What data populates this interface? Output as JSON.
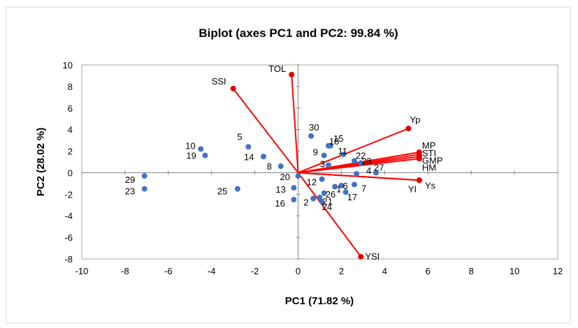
{
  "chart_data": {
    "type": "scatter",
    "title": "Biplot (axes PC1 and PC2: 99.84 %)",
    "xlabel": "PC1 (71.82 %)",
    "ylabel": "PC2 (28.02 %)",
    "xlim": [
      -10,
      12
    ],
    "ylim": [
      -8,
      10
    ],
    "xticks": [
      -10,
      -8,
      -6,
      -4,
      -2,
      0,
      2,
      4,
      6,
      8,
      10,
      12
    ],
    "yticks": [
      -8,
      -6,
      -4,
      -2,
      0,
      2,
      4,
      6,
      8,
      10
    ],
    "grid": false,
    "colors": {
      "points": "#4472C4",
      "vectors": "#FF0000",
      "vector_heads": "#E00000"
    },
    "observations": [
      {
        "label": "1",
        "x": 1.7,
        "y": -1.3
      },
      {
        "label": "2",
        "x": 0.7,
        "y": -2.4
      },
      {
        "label": "3",
        "x": 1.4,
        "y": 0.7
      },
      {
        "label": "4",
        "x": 2.7,
        "y": -0.1
      },
      {
        "label": "5",
        "x": -2.3,
        "y": 2.4
      },
      {
        "label": "6",
        "x": 2.0,
        "y": -1.2
      },
      {
        "label": "7",
        "x": 2.6,
        "y": -1.1
      },
      {
        "label": "8",
        "x": -0.8,
        "y": 0.6
      },
      {
        "label": "9",
        "x": 1.2,
        "y": 1.6
      },
      {
        "label": "10",
        "x": -4.5,
        "y": 2.2
      },
      {
        "label": "11",
        "x": 2.1,
        "y": 1.7
      },
      {
        "label": "12",
        "x": 1.1,
        "y": -0.6
      },
      {
        "label": "13",
        "x": -0.2,
        "y": -1.4
      },
      {
        "label": "14",
        "x": -1.6,
        "y": 1.5
      },
      {
        "label": "15",
        "x": 1.5,
        "y": 2.5
      },
      {
        "label": "16",
        "x": -0.2,
        "y": -2.5
      },
      {
        "label": "17",
        "x": 2.2,
        "y": -1.8
      },
      {
        "label": "18",
        "x": 1.4,
        "y": 2.5
      },
      {
        "label": "19",
        "x": -4.3,
        "y": 1.6
      },
      {
        "label": "20",
        "x": 0.0,
        "y": -0.3
      },
      {
        "label": "21",
        "x": 1.0,
        "y": -2.3
      },
      {
        "label": "22",
        "x": 2.6,
        "y": 1.1
      },
      {
        "label": "23",
        "x": -7.1,
        "y": -1.5
      },
      {
        "label": "24",
        "x": 1.1,
        "y": -2.7
      },
      {
        "label": "25",
        "x": -2.8,
        "y": -1.5
      },
      {
        "label": "26",
        "x": 1.2,
        "y": -1.9
      },
      {
        "label": "27",
        "x": 3.6,
        "y": 0.0
      },
      {
        "label": "28",
        "x": 2.9,
        "y": 0.9
      },
      {
        "label": "29",
        "x": -7.1,
        "y": -0.3
      },
      {
        "label": "30",
        "x": 0.6,
        "y": 3.4
      }
    ],
    "variables": [
      {
        "label": "TOL",
        "x": -0.3,
        "y": 9.1
      },
      {
        "label": "SSI",
        "x": -3.0,
        "y": 7.8
      },
      {
        "label": "Yp",
        "x": 5.1,
        "y": 4.1
      },
      {
        "label": "MP",
        "x": 5.6,
        "y": 1.9
      },
      {
        "label": "STI",
        "x": 5.6,
        "y": 1.7
      },
      {
        "label": "GMP",
        "x": 5.6,
        "y": 1.5
      },
      {
        "label": "HM",
        "x": 5.6,
        "y": 1.3
      },
      {
        "label": "Ys",
        "x": 5.6,
        "y": -0.7
      },
      {
        "label": "YI",
        "x": 5.6,
        "y": -0.7
      },
      {
        "label": "YSI",
        "x": 2.9,
        "y": -7.8
      }
    ]
  }
}
